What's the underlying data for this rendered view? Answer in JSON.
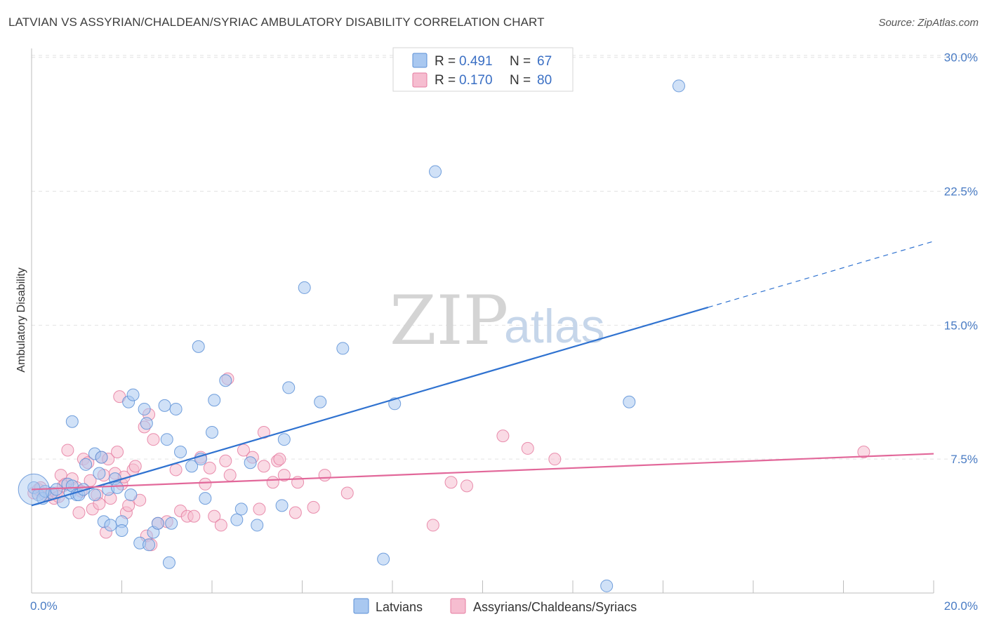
{
  "header": {
    "title": "LATVIAN VS ASSYRIAN/CHALDEAN/SYRIAC AMBULATORY DISABILITY CORRELATION CHART",
    "source": "Source: ZipAtlas.com"
  },
  "watermark": {
    "zip": "ZIP",
    "atlas": "atlas"
  },
  "colors": {
    "latvian_fill": "#a9c8f0",
    "latvian_stroke": "#5b8fd6",
    "latvian_line": "#2f72d0",
    "assyrian_fill": "#f6bdd0",
    "assyrian_stroke": "#e57ba0",
    "assyrian_line": "#e2689a",
    "tick_text": "#4a7cc4",
    "grid": "#e2e2e2"
  },
  "legend": {
    "r_label": "R =",
    "n_label": "N =",
    "items": [
      {
        "r": "0.491",
        "n": "67"
      },
      {
        "r": "0.170",
        "n": "80"
      }
    ]
  },
  "bottom_legend": [
    "Latvians",
    "Assyrians/Chaldeans/Syriacs"
  ],
  "chart_data": {
    "type": "scatter",
    "title": "LATVIAN VS ASSYRIAN/CHALDEAN/SYRIAC AMBULATORY DISABILITY CORRELATION CHART",
    "xlabel": "",
    "ylabel": "Ambulatory Disability",
    "xlim": [
      0,
      20
    ],
    "ylim": [
      0,
      30.5
    ],
    "x_tick_labels": [
      "0.0%",
      "20.0%"
    ],
    "y_ticks": [
      7.5,
      15.0,
      22.5,
      30.0
    ],
    "y_tick_labels": [
      "7.5%",
      "15.0%",
      "22.5%",
      "30.0%"
    ],
    "grid": true,
    "series": [
      {
        "name": "Latvians",
        "r": 0.491,
        "n": 67,
        "trend": {
          "x0": 0,
          "y0": 4.9,
          "x1": 15.0,
          "y1": 16.0,
          "dash_to_x": 20.0,
          "dash_to_y": 19.7
        },
        "points": [
          [
            0.05,
            5.9
          ],
          [
            0.15,
            5.5
          ],
          [
            0.25,
            5.3
          ],
          [
            0.3,
            5.7
          ],
          [
            0.45,
            5.6
          ],
          [
            0.55,
            5.8
          ],
          [
            0.7,
            5.1
          ],
          [
            0.8,
            6.1
          ],
          [
            0.85,
            5.6
          ],
          [
            0.9,
            6.0
          ],
          [
            0.9,
            9.6
          ],
          [
            1.0,
            5.5
          ],
          [
            1.05,
            5.5
          ],
          [
            1.15,
            5.8
          ],
          [
            1.2,
            7.2
          ],
          [
            1.4,
            5.5
          ],
          [
            1.4,
            7.8
          ],
          [
            1.5,
            6.7
          ],
          [
            1.55,
            7.6
          ],
          [
            1.6,
            4.0
          ],
          [
            1.7,
            5.8
          ],
          [
            1.75,
            3.8
          ],
          [
            1.85,
            6.4
          ],
          [
            1.9,
            5.9
          ],
          [
            2.0,
            4.0
          ],
          [
            2.0,
            3.5
          ],
          [
            2.15,
            10.7
          ],
          [
            2.2,
            5.5
          ],
          [
            2.25,
            11.1
          ],
          [
            2.4,
            2.8
          ],
          [
            2.5,
            10.3
          ],
          [
            2.55,
            9.5
          ],
          [
            2.6,
            2.7
          ],
          [
            2.7,
            3.4
          ],
          [
            2.8,
            3.9
          ],
          [
            2.95,
            10.5
          ],
          [
            3.0,
            8.6
          ],
          [
            3.05,
            1.7
          ],
          [
            3.1,
            3.9
          ],
          [
            3.2,
            10.3
          ],
          [
            3.3,
            7.9
          ],
          [
            3.55,
            7.1
          ],
          [
            3.7,
            13.8
          ],
          [
            3.75,
            7.5
          ],
          [
            3.85,
            5.3
          ],
          [
            4.0,
            9.0
          ],
          [
            4.05,
            10.8
          ],
          [
            4.3,
            11.9
          ],
          [
            4.55,
            4.1
          ],
          [
            4.65,
            4.7
          ],
          [
            4.85,
            7.3
          ],
          [
            5.0,
            3.8
          ],
          [
            5.55,
            4.9
          ],
          [
            5.6,
            8.6
          ],
          [
            5.7,
            11.5
          ],
          [
            6.05,
            17.1
          ],
          [
            6.4,
            10.7
          ],
          [
            6.9,
            13.7
          ],
          [
            7.8,
            1.9
          ],
          [
            8.05,
            10.6
          ],
          [
            8.95,
            23.6
          ],
          [
            12.75,
            0.4
          ],
          [
            13.25,
            10.7
          ],
          [
            14.35,
            28.4
          ]
        ]
      },
      {
        "name": "Assyrians/Chaldeans/Syriacs",
        "r": 0.17,
        "n": 80,
        "trend": {
          "x0": 0,
          "y0": 5.8,
          "x1": 20.0,
          "y1": 7.8
        },
        "points": [
          [
            0.05,
            5.6
          ],
          [
            0.15,
            5.8
          ],
          [
            0.2,
            5.9
          ],
          [
            0.3,
            5.5
          ],
          [
            0.4,
            5.5
          ],
          [
            0.5,
            5.3
          ],
          [
            0.55,
            5.6
          ],
          [
            0.6,
            5.4
          ],
          [
            0.65,
            6.6
          ],
          [
            0.7,
            6.0
          ],
          [
            0.75,
            6.1
          ],
          [
            0.8,
            8.0
          ],
          [
            0.9,
            6.4
          ],
          [
            1.0,
            5.9
          ],
          [
            1.05,
            4.5
          ],
          [
            1.1,
            5.7
          ],
          [
            1.15,
            7.5
          ],
          [
            1.25,
            7.3
          ],
          [
            1.3,
            6.3
          ],
          [
            1.35,
            4.7
          ],
          [
            1.45,
            5.5
          ],
          [
            1.5,
            5.0
          ],
          [
            1.55,
            7.6
          ],
          [
            1.6,
            6.6
          ],
          [
            1.65,
            3.4
          ],
          [
            1.7,
            7.5
          ],
          [
            1.75,
            5.3
          ],
          [
            1.85,
            6.7
          ],
          [
            1.9,
            7.9
          ],
          [
            1.95,
            11.0
          ],
          [
            2.0,
            6.1
          ],
          [
            2.05,
            6.5
          ],
          [
            2.1,
            4.5
          ],
          [
            2.15,
            4.9
          ],
          [
            2.25,
            6.9
          ],
          [
            2.3,
            7.1
          ],
          [
            2.4,
            5.2
          ],
          [
            2.5,
            9.3
          ],
          [
            2.55,
            3.2
          ],
          [
            2.6,
            10.0
          ],
          [
            2.65,
            2.7
          ],
          [
            2.7,
            8.6
          ],
          [
            2.8,
            3.9
          ],
          [
            3.0,
            4.0
          ],
          [
            3.2,
            6.9
          ],
          [
            3.3,
            4.6
          ],
          [
            3.45,
            4.3
          ],
          [
            3.6,
            4.3
          ],
          [
            3.75,
            7.6
          ],
          [
            3.85,
            6.1
          ],
          [
            3.95,
            7.0
          ],
          [
            4.05,
            4.3
          ],
          [
            4.2,
            3.8
          ],
          [
            4.3,
            7.4
          ],
          [
            4.35,
            12.0
          ],
          [
            4.4,
            6.6
          ],
          [
            4.7,
            8.0
          ],
          [
            4.9,
            7.6
          ],
          [
            5.05,
            4.7
          ],
          [
            5.15,
            7.1
          ],
          [
            5.15,
            9.0
          ],
          [
            5.35,
            6.2
          ],
          [
            5.45,
            7.4
          ],
          [
            5.5,
            7.5
          ],
          [
            5.6,
            6.6
          ],
          [
            5.85,
            4.5
          ],
          [
            5.9,
            6.2
          ],
          [
            6.25,
            4.8
          ],
          [
            6.5,
            6.6
          ],
          [
            7.0,
            5.6
          ],
          [
            8.9,
            3.8
          ],
          [
            9.3,
            6.2
          ],
          [
            9.65,
            6.0
          ],
          [
            10.45,
            8.8
          ],
          [
            11.0,
            8.1
          ],
          [
            11.6,
            7.5
          ],
          [
            18.45,
            7.9
          ]
        ]
      }
    ]
  }
}
